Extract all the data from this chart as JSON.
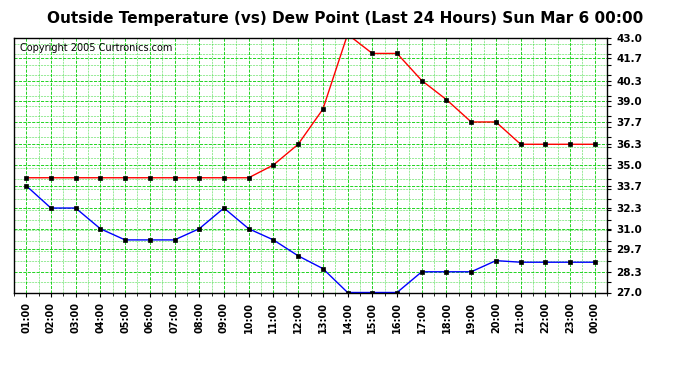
{
  "title": "Outside Temperature (vs) Dew Point (Last 24 Hours) Sun Mar 6 00:00",
  "copyright": "Copyright 2005 Curtronics.com",
  "plot_bg_color": "#ffffff",
  "grid_color": "#00cc00",
  "x_labels": [
    "01:00",
    "02:00",
    "03:00",
    "04:00",
    "05:00",
    "06:00",
    "07:00",
    "08:00",
    "09:00",
    "10:00",
    "11:00",
    "12:00",
    "13:00",
    "14:00",
    "15:00",
    "16:00",
    "17:00",
    "18:00",
    "19:00",
    "20:00",
    "21:00",
    "22:00",
    "23:00",
    "00:00"
  ],
  "x_indices": [
    0,
    1,
    2,
    3,
    4,
    5,
    6,
    7,
    8,
    9,
    10,
    11,
    12,
    13,
    14,
    15,
    16,
    17,
    18,
    19,
    20,
    21,
    22,
    23
  ],
  "temp_data": [
    33.7,
    32.3,
    32.3,
    31.0,
    30.3,
    30.3,
    30.3,
    31.0,
    32.3,
    31.0,
    30.3,
    29.3,
    28.5,
    27.0,
    27.0,
    27.0,
    28.3,
    28.3,
    28.3,
    29.0,
    28.9,
    28.9,
    28.9,
    28.9
  ],
  "dew_data": [
    34.2,
    34.2,
    34.2,
    34.2,
    34.2,
    34.2,
    34.2,
    34.2,
    34.2,
    34.2,
    35.0,
    36.3,
    38.5,
    43.2,
    42.0,
    42.0,
    40.3,
    39.1,
    37.7,
    37.7,
    36.3,
    36.3,
    36.3,
    36.3
  ],
  "temp_color": "#0000ff",
  "dew_color": "#ff0000",
  "marker_color": "#000000",
  "ylim_min": 27.0,
  "ylim_max": 43.0,
  "yticks": [
    27.0,
    28.3,
    29.7,
    31.0,
    32.3,
    33.7,
    35.0,
    36.3,
    37.7,
    39.0,
    40.3,
    41.7,
    43.0
  ],
  "title_fontsize": 11,
  "copyright_fontsize": 7,
  "tick_fontsize": 7.5,
  "xtick_fontsize": 7
}
